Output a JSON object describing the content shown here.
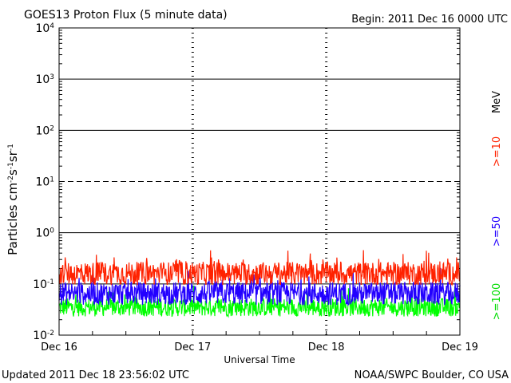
{
  "chart_data": {
    "type": "line",
    "title": "GOES13 Proton Flux (5 minute data)",
    "begin_text": "Begin: 2011 Dec 16 0000 UTC",
    "ylabel_main": "Particles cm",
    "ylabel_sup1": "-2",
    "ylabel_mid1": "s",
    "ylabel_sup2": "-1",
    "ylabel_mid2": "sr",
    "ylabel_sup3": "-1",
    "xlabel": "Universal Time",
    "footer_left": "Updated 2011 Dec 18 23:56:02 UTC",
    "footer_right": "NOAA/SWPC Boulder, CO USA",
    "y_scale": "log",
    "ylim": [
      0.01,
      10000
    ],
    "y_ticks": [
      {
        "base": "10",
        "exp": "4"
      },
      {
        "base": "10",
        "exp": "3"
      },
      {
        "base": "10",
        "exp": "2"
      },
      {
        "base": "10",
        "exp": "1"
      },
      {
        "base": "10",
        "exp": "0"
      },
      {
        "base": "10",
        "exp": "-1"
      },
      {
        "base": "10",
        "exp": "-2"
      }
    ],
    "x_ticks": [
      "Dec 16",
      "Dec 17",
      "Dec 18",
      "Dec 19"
    ],
    "xlim": [
      "2011-12-16T00:00Z",
      "2011-12-19T00:00Z"
    ],
    "unit_label": "MeV",
    "series": [
      {
        "name": ">=10",
        "color": "#ff2200",
        "level": 0.16,
        "approx_range": [
          0.1,
          0.3
        ]
      },
      {
        "name": ">=50",
        "color": "#2200ff",
        "level": 0.065,
        "approx_range": [
          0.04,
          0.12
        ]
      },
      {
        "name": ">=100",
        "color": "#00ff00",
        "level": 0.035,
        "approx_range": [
          0.025,
          0.06
        ]
      }
    ]
  }
}
